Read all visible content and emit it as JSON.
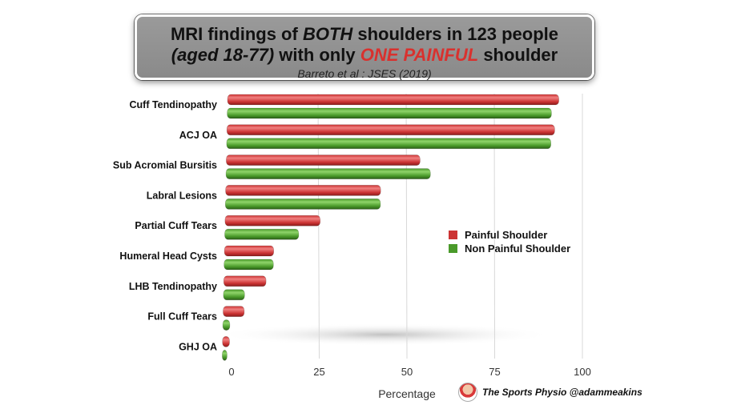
{
  "title": {
    "line1_a": "MRI findings of ",
    "line1_b": "BOTH",
    "line1_c": " shoulders in 123 people",
    "line2_a": "(aged 18-77)",
    "line2_b": " with only ",
    "line2_c": "ONE PAINFUL",
    "line2_d": " shoulder",
    "source": "Barreto et al : JSES (2019)"
  },
  "footer": {
    "credit": "The Sports Physio @adammeakins",
    "logo_icon": "sports-physio-logo-icon"
  },
  "colors": {
    "painful": "#cc3333",
    "non_painful": "#4a9a2a"
  },
  "chart_data": {
    "type": "bar",
    "orientation": "horizontal",
    "categories": [
      "Cuff Tendinopathy",
      "ACJ OA",
      "Sub Acromial Bursitis",
      "Labral Lesions",
      "Partial Cuff Tears",
      "Humeral Head Cysts",
      "LHB Tendinopathy",
      "Full Cuff Tears",
      "GHJ OA"
    ],
    "series": [
      {
        "name": "Painful Shoulder",
        "values": [
          94,
          93,
          55,
          44,
          27,
          14,
          12,
          6,
          2
        ]
      },
      {
        "name": "Non Painful Shoulder",
        "values": [
          92,
          92,
          58,
          44,
          21,
          14,
          6,
          2,
          1
        ]
      }
    ],
    "xlabel": "Percentage",
    "xlim": [
      0,
      100
    ],
    "xticks": [
      "0",
      "25",
      "50",
      "75",
      "100"
    ],
    "grid": true,
    "legend_position": "right-middle"
  }
}
